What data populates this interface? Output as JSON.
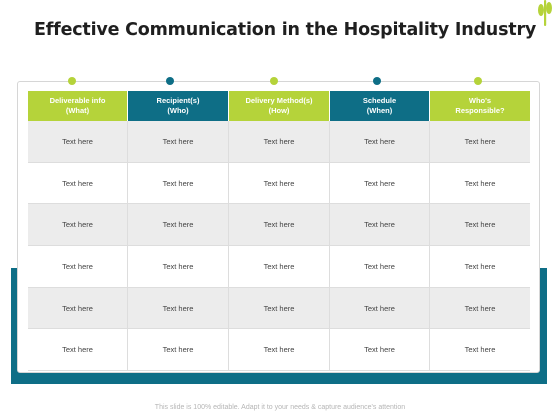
{
  "title": "Effective Communication in the Hospitality Industry",
  "colors": {
    "green": "#b5d33a",
    "teal": "#0e6e86",
    "row_shade": "#ececec"
  },
  "columns": [
    {
      "line1": "Deliverable info",
      "line2": "(What)",
      "color": "#b5d33a"
    },
    {
      "line1": "Recipient(s)",
      "line2": "(Who)",
      "color": "#0e6e86"
    },
    {
      "line1": "Delivery Method(s)",
      "line2": "(How)",
      "color": "#b5d33a"
    },
    {
      "line1": "Schedule",
      "line2": "(When)",
      "color": "#0e6e86"
    },
    {
      "line1": "Who's",
      "line2": "Responsible?",
      "color": "#b5d33a"
    }
  ],
  "rows": [
    [
      "Text here",
      "Text here",
      "Text here",
      "Text here",
      "Text here"
    ],
    [
      "Text here",
      "Text here",
      "Text here",
      "Text here",
      "Text here"
    ],
    [
      "Text here",
      "Text here",
      "Text here",
      "Text here",
      "Text here"
    ],
    [
      "Text here",
      "Text here",
      "Text here",
      "Text here",
      "Text here"
    ],
    [
      "Text here",
      "Text here",
      "Text here",
      "Text here",
      "Text here"
    ],
    [
      "Text here",
      "Text here",
      "Text here",
      "Text here",
      "Text here"
    ]
  ],
  "footer": "This slide is 100% editable. Adapt it to your needs & capture audience's attention"
}
